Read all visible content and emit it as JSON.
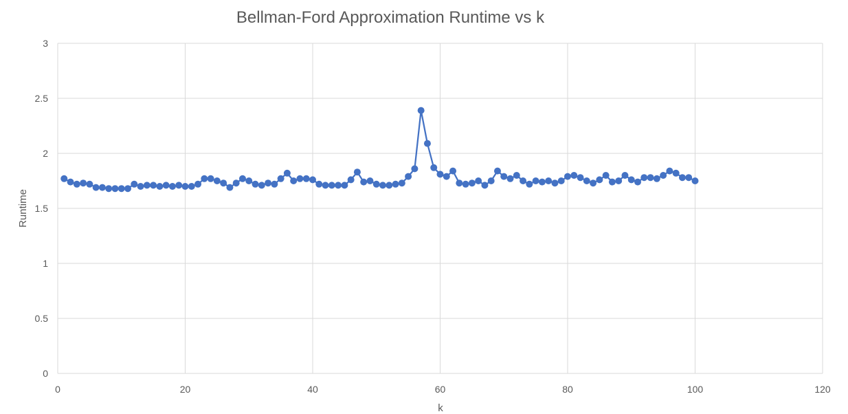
{
  "chart_data": {
    "type": "scatter",
    "title": "Bellman-Ford Approximation Runtime vs k",
    "xlabel": "k",
    "ylabel": "Runtime",
    "xlim": [
      0,
      120
    ],
    "ylim": [
      0,
      3
    ],
    "x_ticks": [
      0,
      20,
      40,
      60,
      80,
      100,
      120
    ],
    "y_ticks": [
      0,
      0.5,
      1,
      1.5,
      2,
      2.5,
      3
    ],
    "grid": true,
    "legend": "none",
    "series": [
      {
        "color": "#4472c4",
        "x": [
          1,
          2,
          3,
          4,
          5,
          6,
          7,
          8,
          9,
          10,
          11,
          12,
          13,
          14,
          15,
          16,
          17,
          18,
          19,
          20,
          21,
          22,
          23,
          24,
          25,
          26,
          27,
          28,
          29,
          30,
          31,
          32,
          33,
          34,
          35,
          36,
          37,
          38,
          39,
          40,
          41,
          42,
          43,
          44,
          45,
          46,
          47,
          48,
          49,
          50,
          51,
          52,
          53,
          54,
          55,
          56,
          57,
          58,
          59,
          60,
          61,
          62,
          63,
          64,
          65,
          66,
          67,
          68,
          69,
          70,
          71,
          72,
          73,
          74,
          75,
          76,
          77,
          78,
          79,
          80,
          81,
          82,
          83,
          84,
          85,
          86,
          87,
          88,
          89,
          90,
          91,
          92,
          93,
          94,
          95,
          96,
          97,
          98,
          99,
          100
        ],
        "y": [
          1.77,
          1.74,
          1.72,
          1.73,
          1.72,
          1.69,
          1.69,
          1.68,
          1.68,
          1.68,
          1.68,
          1.72,
          1.7,
          1.71,
          1.71,
          1.7,
          1.71,
          1.7,
          1.71,
          1.7,
          1.7,
          1.72,
          1.77,
          1.77,
          1.75,
          1.73,
          1.69,
          1.73,
          1.77,
          1.75,
          1.72,
          1.71,
          1.73,
          1.72,
          1.77,
          1.82,
          1.75,
          1.77,
          1.77,
          1.76,
          1.72,
          1.71,
          1.71,
          1.71,
          1.71,
          1.76,
          1.83,
          1.74,
          1.75,
          1.72,
          1.71,
          1.71,
          1.72,
          1.73,
          1.79,
          1.86,
          2.39,
          2.09,
          1.87,
          1.81,
          1.79,
          1.84,
          1.73,
          1.72,
          1.73,
          1.75,
          1.71,
          1.75,
          1.84,
          1.79,
          1.77,
          1.8,
          1.75,
          1.72,
          1.75,
          1.74,
          1.75,
          1.73,
          1.75,
          1.79,
          1.8,
          1.78,
          1.75,
          1.73,
          1.76,
          1.8,
          1.74,
          1.75,
          1.8,
          1.76,
          1.74,
          1.78,
          1.78,
          1.77,
          1.8,
          1.84,
          1.82,
          1.78,
          1.78,
          1.75
        ]
      }
    ]
  }
}
